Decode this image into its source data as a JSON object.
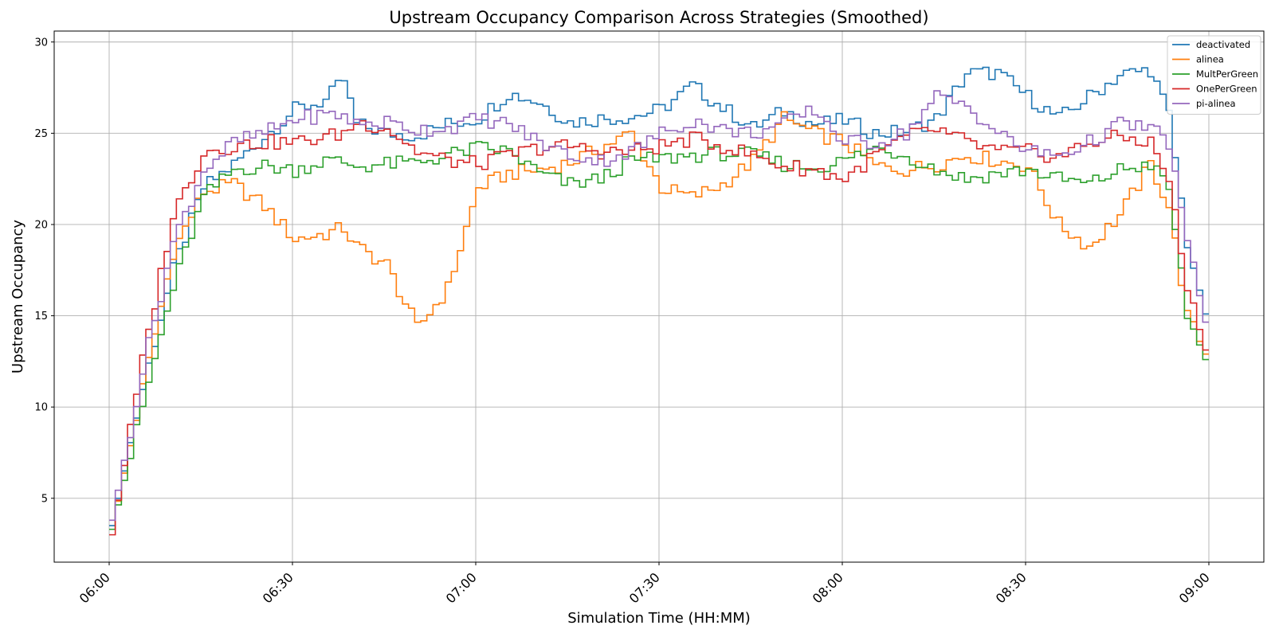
{
  "chart_data": {
    "type": "line",
    "step": true,
    "title": "Upstream Occupancy Comparison Across Strategies (Smoothed)",
    "xlabel": "Simulation Time (HH:MM)",
    "ylabel": "Upstream Occupancy",
    "x_unit": "HH:MM",
    "xlim": [
      "05:51",
      "09:09"
    ],
    "ylim": [
      1.5,
      30.6
    ],
    "xticks": [
      "06:00",
      "06:30",
      "07:00",
      "07:30",
      "08:00",
      "08:30",
      "09:00"
    ],
    "yticks": [
      5,
      10,
      15,
      20,
      25,
      30
    ],
    "grid": true,
    "legend_position": "upper right",
    "x": [
      "06:00",
      "06:05",
      "06:10",
      "06:15",
      "06:20",
      "06:25",
      "06:30",
      "06:35",
      "06:38",
      "06:40",
      "06:45",
      "06:50",
      "06:55",
      "07:00",
      "07:05",
      "07:10",
      "07:15",
      "07:20",
      "07:25",
      "07:30",
      "07:35",
      "07:40",
      "07:45",
      "07:50",
      "07:55",
      "08:00",
      "08:05",
      "08:10",
      "08:15",
      "08:20",
      "08:25",
      "08:30",
      "08:35",
      "08:40",
      "08:45",
      "08:50",
      "08:53",
      "08:56",
      "09:00"
    ],
    "series": [
      {
        "name": "deactivated",
        "color": "#1f77b4",
        "values": [
          3.5,
          11.0,
          17.5,
          22.0,
          23.3,
          24.8,
          26.3,
          26.8,
          27.9,
          25.5,
          25.0,
          24.9,
          25.5,
          25.8,
          27.2,
          26.7,
          25.6,
          25.8,
          25.9,
          26.3,
          27.6,
          26.4,
          25.3,
          26.2,
          25.5,
          25.7,
          25.0,
          25.1,
          25.8,
          28.3,
          28.3,
          27.0,
          25.8,
          27.0,
          28.2,
          28.5,
          26.0,
          19.0,
          13.8
        ]
      },
      {
        "name": "alinea",
        "color": "#ff7f0e",
        "values": [
          3.3,
          11.0,
          18.5,
          21.8,
          22.2,
          21.0,
          19.2,
          19.5,
          19.8,
          18.8,
          17.8,
          14.3,
          16.5,
          22.0,
          22.8,
          23.0,
          23.4,
          24.2,
          25.0,
          22.0,
          21.5,
          22.2,
          23.5,
          25.8,
          25.0,
          24.5,
          23.2,
          23.0,
          23.3,
          23.8,
          23.5,
          23.2,
          20.0,
          18.8,
          20.5,
          23.3,
          21.0,
          15.0,
          12.2
        ]
      },
      {
        "name": "MultPerGreen",
        "color": "#2ca02c",
        "values": [
          3.3,
          10.0,
          16.5,
          21.5,
          23.0,
          23.2,
          23.0,
          23.5,
          23.4,
          23.2,
          23.3,
          23.4,
          23.8,
          24.2,
          24.0,
          22.8,
          22.2,
          22.5,
          23.5,
          23.6,
          23.8,
          23.9,
          23.8,
          23.3,
          23.1,
          23.5,
          24.2,
          23.8,
          23.0,
          22.5,
          22.8,
          23.0,
          22.5,
          22.2,
          23.0,
          23.3,
          22.0,
          15.0,
          11.8
        ]
      },
      {
        "name": "OnePerGreen",
        "color": "#d62728",
        "values": [
          3.0,
          12.5,
          20.5,
          24.0,
          24.3,
          24.5,
          24.5,
          24.8,
          25.0,
          25.6,
          25.3,
          24.0,
          23.5,
          23.3,
          23.8,
          24.2,
          24.3,
          24.0,
          24.0,
          24.3,
          24.7,
          24.3,
          23.8,
          23.2,
          23.0,
          22.5,
          23.8,
          24.8,
          25.2,
          24.5,
          24.0,
          24.0,
          23.7,
          24.5,
          24.8,
          24.5,
          22.5,
          16.5,
          12.0
        ]
      },
      {
        "name": "pi-alinea",
        "color": "#9467bd",
        "values": [
          3.8,
          12.0,
          19.0,
          23.0,
          24.5,
          25.0,
          25.8,
          26.0,
          26.0,
          25.5,
          25.6,
          25.2,
          25.3,
          25.8,
          25.5,
          24.5,
          23.8,
          23.5,
          24.0,
          25.0,
          25.7,
          25.2,
          25.0,
          25.5,
          26.3,
          24.5,
          24.5,
          25.0,
          27.0,
          26.5,
          25.0,
          24.0,
          23.8,
          24.5,
          25.5,
          25.3,
          24.5,
          19.0,
          13.2
        ]
      }
    ]
  }
}
